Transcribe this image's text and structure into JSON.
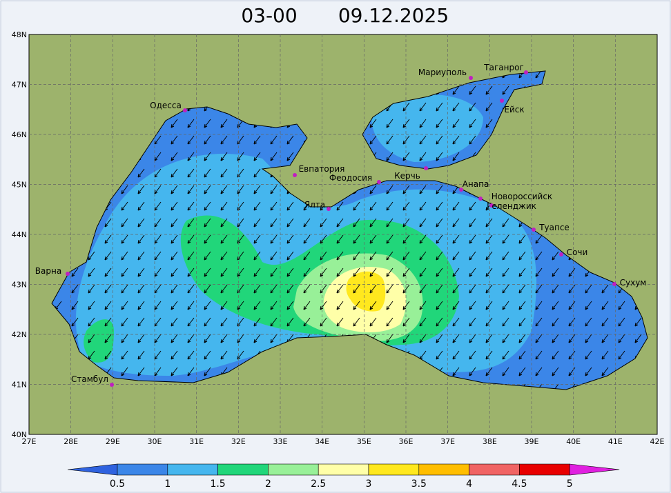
{
  "map": {
    "title": {
      "time": "03-00",
      "date": "09.12.2025"
    },
    "lon_labels": [
      "27E",
      "28E",
      "29E",
      "30E",
      "31E",
      "32E",
      "33E",
      "34E",
      "35E",
      "36E",
      "37E",
      "38E",
      "39E",
      "40E",
      "41E",
      "42E"
    ],
    "lat_labels": [
      "40N",
      "41N",
      "42N",
      "43N",
      "44N",
      "45N",
      "46N",
      "47N",
      "48N"
    ],
    "cities": [
      "Одесса",
      "Мариуполь",
      "Таганрог",
      "Ейск",
      "Евпатория",
      "Феодосия",
      "Керчь",
      "Анапа",
      "Новороссийск",
      "Геленджик",
      "Ялта",
      "Туапсе",
      "Сочи",
      "Сухум",
      "Варна",
      "Стамбул"
    ],
    "colorbar": {
      "labels": [
        "0.5",
        "1",
        "1.5",
        "2",
        "2.5",
        "3",
        "3.5",
        "4",
        "4.5",
        "5"
      ],
      "colors": [
        "#2f62df",
        "#3b86e8",
        "#45b6ee",
        "#21d67a",
        "#98f098",
        "#ffffa8",
        "#ffe81e",
        "#ffbe00",
        "#f06464",
        "#e80000",
        "#e020e0"
      ]
    }
  }
}
